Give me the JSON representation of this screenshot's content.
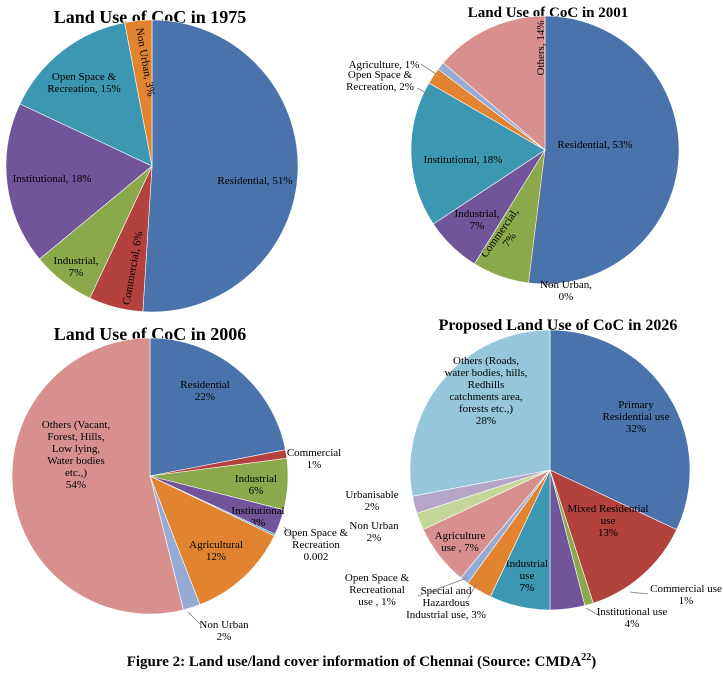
{
  "colors": {
    "blue": "#4a73ac",
    "red": "#b3413e",
    "green": "#8ba84a",
    "purple": "#70559a",
    "teal": "#3b97b2",
    "orange": "#e2842f",
    "ltblue": "#95abd6",
    "pink": "#d7908e",
    "ltblue2": "#96c6da",
    "ltgreen": "#c4d69a",
    "lavender": "#b4a5c9"
  },
  "caption": {
    "text": "Figure 2: Land use/land cover information of Chennai (Source: CMDA",
    "ref": "22",
    "close": ")"
  },
  "chart_data": [
    {
      "type": "pie",
      "title": "Land Use of CoC in 1975",
      "slices": [
        {
          "name": "Residential",
          "value": 51,
          "label": [
            "Residential, 51%"
          ],
          "color": "blue"
        },
        {
          "name": "Commercial",
          "value": 6,
          "label": [
            "Commercial, 6%"
          ],
          "color": "red"
        },
        {
          "name": "Industrial",
          "value": 7,
          "label": [
            "Industrial,",
            "7%"
          ],
          "color": "green"
        },
        {
          "name": "Institutional",
          "value": 18,
          "label": [
            "Institutional, 18%"
          ],
          "color": "purple"
        },
        {
          "name": "Open Space & Recreation",
          "value": 15,
          "label": [
            "Open Space &",
            "Recreation, 15%"
          ],
          "color": "teal"
        },
        {
          "name": "Non Urban",
          "value": 3,
          "label": [
            "Non Urban, 3%"
          ],
          "color": "orange"
        }
      ]
    },
    {
      "type": "pie",
      "title": "Land Use of CoC in 2001",
      "slices": [
        {
          "name": "Residential",
          "value": 53,
          "label": [
            "Residential, 53%"
          ],
          "color": "blue"
        },
        {
          "name": "Non Urban",
          "value": 0,
          "label": [
            "Non Urban,",
            "0%"
          ],
          "color": "red"
        },
        {
          "name": "Commercial",
          "value": 7,
          "label": [
            "Commercial,",
            "7%"
          ],
          "color": "green"
        },
        {
          "name": "Industrial",
          "value": 7,
          "label": [
            "Industrial,",
            "7%"
          ],
          "color": "purple"
        },
        {
          "name": "Institutional",
          "value": 18,
          "label": [
            "Institutional, 18%"
          ],
          "color": "teal"
        },
        {
          "name": "Open Space & Recreation",
          "value": 2,
          "label": [
            "Open Space &",
            "Recreation, 2%"
          ],
          "color": "orange"
        },
        {
          "name": "Agriculture",
          "value": 1,
          "label": [
            "Agriculture, 1%"
          ],
          "color": "ltblue"
        },
        {
          "name": "Others",
          "value": 14,
          "label": [
            "Others, 14%"
          ],
          "color": "pink"
        }
      ]
    },
    {
      "type": "pie",
      "title": "Land Use of CoC in 2006",
      "slices": [
        {
          "name": "Residential",
          "value": 22,
          "label": [
            "Residential",
            "22%"
          ],
          "color": "blue"
        },
        {
          "name": "Commercial",
          "value": 1,
          "label": [
            "Commercial",
            "1%"
          ],
          "color": "red"
        },
        {
          "name": "Industrial",
          "value": 6,
          "label": [
            "Industrial",
            "6%"
          ],
          "color": "green"
        },
        {
          "name": "Institutional",
          "value": 3,
          "label": [
            "Institutional",
            "3%"
          ],
          "color": "purple"
        },
        {
          "name": "Open Space & Recreation",
          "value": 0.2,
          "label": [
            "Open Space &",
            "Recreation",
            "0.002"
          ],
          "color": "teal"
        },
        {
          "name": "Agricultural",
          "value": 12,
          "label": [
            "Agricultural",
            "12%"
          ],
          "color": "orange"
        },
        {
          "name": "Non Urban",
          "value": 2,
          "label": [
            "Non Urban",
            "2%"
          ],
          "color": "ltblue"
        },
        {
          "name": "Others",
          "value": 54,
          "label": [
            "Others (Vacant,",
            "Forest, Hills,",
            "Low lying,",
            "Water bodies",
            "etc.,)",
            "54%"
          ],
          "color": "pink"
        }
      ]
    },
    {
      "type": "pie",
      "title": "Proposed Land Use of CoC in 2026",
      "slices": [
        {
          "name": "Primary Residential use",
          "value": 32,
          "label": [
            "Primary",
            "Residential use",
            "32%"
          ],
          "color": "blue"
        },
        {
          "name": "Mixed Residential use",
          "value": 13,
          "label": [
            "Mixed Residential",
            "use",
            "13%"
          ],
          "color": "red"
        },
        {
          "name": "Commercial use",
          "value": 1,
          "label": [
            "Commercial use",
            "1%"
          ],
          "color": "green"
        },
        {
          "name": "Institutional use",
          "value": 4,
          "label": [
            "Institutional use",
            "4%"
          ],
          "color": "purple"
        },
        {
          "name": "Industrial use",
          "value": 7,
          "label": [
            "Industrial",
            "use",
            "7%"
          ],
          "color": "teal"
        },
        {
          "name": "Special and Hazardous Industrial use",
          "value": 3,
          "label": [
            "Special and",
            "Hazardous",
            "Industrial use, 3%"
          ],
          "color": "orange"
        },
        {
          "name": "Open Space & Recreational use",
          "value": 1,
          "label": [
            "Open Space &",
            "Recreational",
            "use , 1%"
          ],
          "color": "ltblue"
        },
        {
          "name": "Agriculture use",
          "value": 7,
          "label": [
            "Agriculture",
            "use , 7%"
          ],
          "color": "pink"
        },
        {
          "name": "Non Urban",
          "value": 2,
          "label": [
            "Non Urban",
            "2%"
          ],
          "color": "ltgreen"
        },
        {
          "name": "Urbanisable",
          "value": 2,
          "label": [
            "Urbanisable",
            "2%"
          ],
          "color": "lavender"
        },
        {
          "name": "Others (Roads, water bodies, hills, Redhills catchments area, forests etc.,)",
          "value": 28,
          "label": [
            "Others (Roads,",
            "water bodies, hills,",
            "Redhills",
            "catchments area,",
            "forests etc.,)",
            "28%"
          ],
          "color": "ltblue2"
        }
      ]
    }
  ]
}
